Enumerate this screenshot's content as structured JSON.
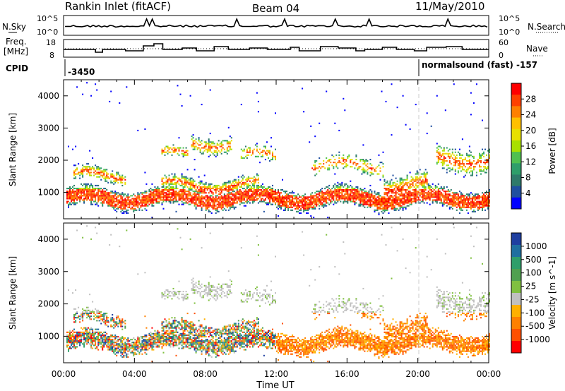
{
  "header": {
    "station": "Rankin Inlet (fitACF)",
    "beam": "Beam 04",
    "date": "11/May/2010"
  },
  "sky_panel": {
    "left_label": "N.Sky",
    "right_label": "N.Search",
    "ticks_left": [
      "10^5",
      "10^0"
    ],
    "ticks_right": [
      "10^5",
      "10^0"
    ]
  },
  "freq_panel": {
    "left_label_1": "Freq.",
    "left_label_2": "[MHz]",
    "right_label": "Nave",
    "ticks_left": [
      "18",
      "8"
    ],
    "ticks_right": [
      "60",
      "0"
    ]
  },
  "cpid": {
    "label": "CPID",
    "value_left": "-3450",
    "value_right": "normalsound (fast) -157"
  },
  "colorbar_power": {
    "label": "Power [dB]",
    "ticks": [
      "28",
      "24",
      "20",
      "16",
      "12",
      "8",
      "4"
    ],
    "colors": [
      "#ff0000",
      "#ff4000",
      "#ff8000",
      "#ffc000",
      "#e8e000",
      "#a8e000",
      "#50c050",
      "#2f9e6a",
      "#2f7a6a",
      "#1f4fa0",
      "#0000ff"
    ]
  },
  "colorbar_velocity": {
    "label": "Velocity [m s^-1]",
    "ticks": [
      "1000",
      "500",
      "100",
      "25",
      "-25",
      "-100",
      "-500",
      "-1000"
    ],
    "colors": [
      "#1f3fa0",
      "#1f6fa0",
      "#2f9e6a",
      "#50a050",
      "#80c040",
      "#c0c0c0",
      "#ffb000",
      "#ff8000",
      "#ff5000",
      "#ff0000"
    ]
  },
  "chart_data": [
    {
      "type": "heatmap",
      "title": "Power",
      "ylabel": "Slant Range [km]",
      "ylim": [
        180,
        4500
      ],
      "yticks": [
        1000,
        2000,
        3000,
        4000
      ],
      "xlim": [
        0,
        24
      ],
      "x_tick_labels": [
        "00:00",
        "04:00",
        "08:00",
        "12:00",
        "16:00",
        "20:00",
        "00:00"
      ],
      "zlabel": "Power [dB]"
    },
    {
      "type": "heatmap",
      "title": "Velocity",
      "ylabel": "Slant Range [km]",
      "xlabel": "Time UT",
      "ylim": [
        180,
        4500
      ],
      "yticks": [
        1000,
        2000,
        3000,
        4000
      ],
      "xlim": [
        0,
        24
      ],
      "x_tick_labels": [
        "00:00",
        "04:00",
        "08:00",
        "12:00",
        "16:00",
        "20:00",
        "00:00"
      ],
      "zlabel": "Velocity [m s^-1]"
    }
  ]
}
